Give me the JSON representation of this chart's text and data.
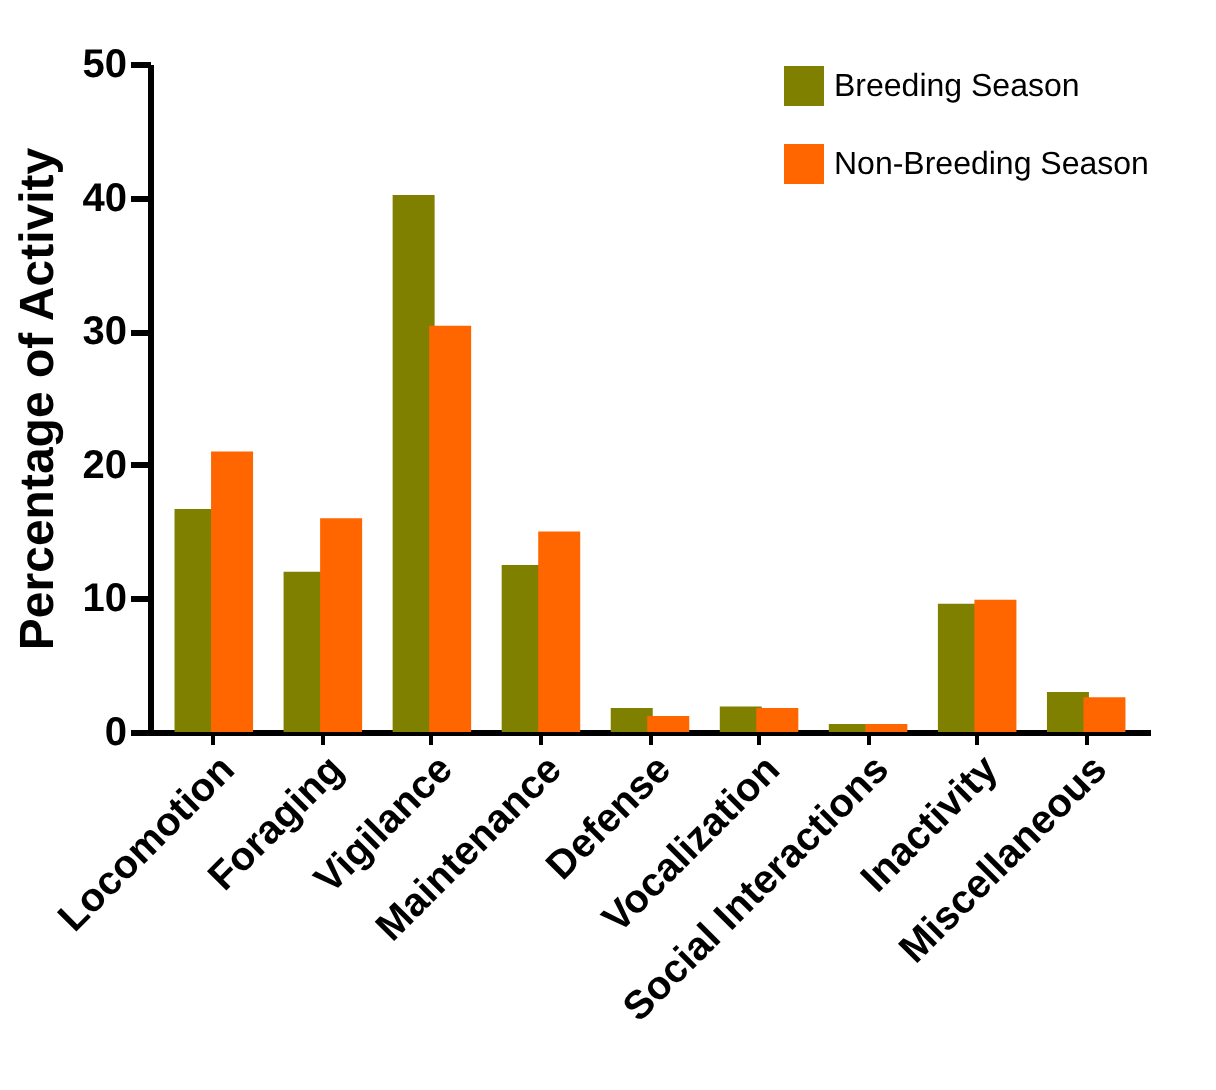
{
  "chart_data": {
    "type": "bar",
    "ylabel": "Percentage of Activity",
    "categories": [
      "Locomotion",
      "Foraging",
      "Vigilance",
      "Maintenance",
      "Defense",
      "Vocalization",
      "Social Interactions",
      "Inactivity",
      "Miscellaneous"
    ],
    "series": [
      {
        "name": "Breeding Season",
        "color": "#808000",
        "values": [
          16.7,
          12.0,
          40.2,
          12.5,
          1.8,
          1.9,
          0.6,
          9.6,
          3.0
        ]
      },
      {
        "name": "Non-Breeding Season",
        "color": "#ff6600",
        "values": [
          21.0,
          16.0,
          30.4,
          15.0,
          1.2,
          1.8,
          0.6,
          9.9,
          2.6
        ]
      }
    ],
    "ylim": [
      0,
      50
    ],
    "yticks": [
      0,
      10,
      20,
      30,
      40,
      50
    ],
    "grid": false,
    "legend": "top right"
  }
}
